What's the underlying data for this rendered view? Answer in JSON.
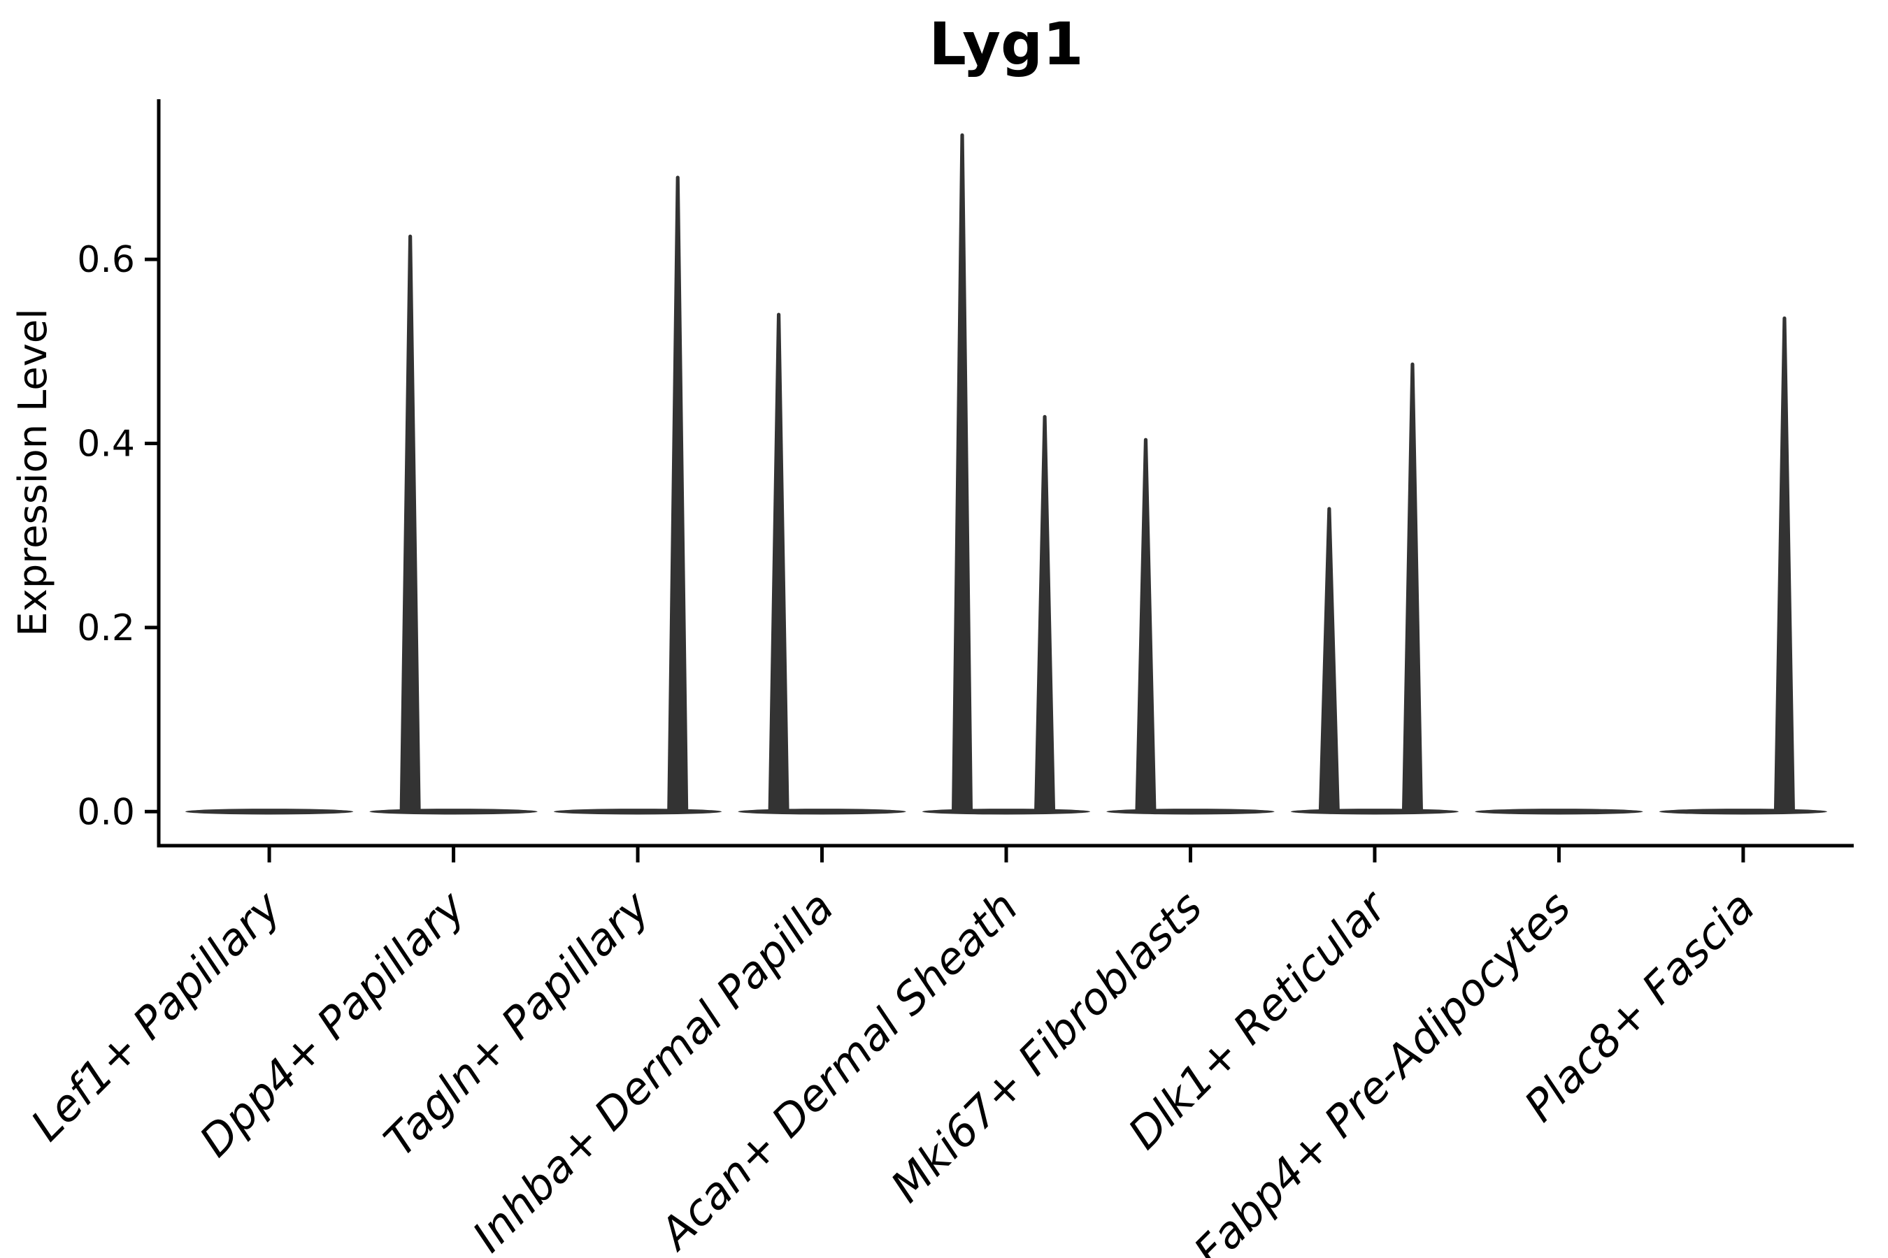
{
  "figure": {
    "background": "#ffffff",
    "title": "Lyg1",
    "ylabel": "Expression Level",
    "xlabel": ""
  },
  "chart_data": {
    "type": "violin",
    "title": "Lyg1",
    "xlabel": "",
    "ylabel": "Expression Level",
    "categories": [
      "Lef1+ Papillary",
      "Dpp4+ Papillary",
      "Tagln+ Papillary",
      "Inhba+ Dermal Papilla",
      "Acan+ Dermal Sheath",
      "Mki67+ Fibroblasts",
      "Dlk1+ Reticular",
      "Fabp4+ Pre-Adipocytes",
      "Plac8+ Fascia"
    ],
    "yticks": [
      0.0,
      0.2,
      0.4,
      0.6
    ],
    "ytick_labels": [
      "0.0",
      "0.2",
      "0.4",
      "0.6"
    ],
    "ylim": [
      -0.037,
      0.774
    ],
    "grid": false,
    "legend": null,
    "violin_fill": "#333333",
    "axis_color": "#000000",
    "violin_width_fraction": 0.9,
    "violins": [
      {
        "category": "Lef1+ Papillary",
        "baseline_value": 0,
        "spikes": []
      },
      {
        "category": "Dpp4+ Papillary",
        "baseline_value": 0,
        "spikes": [
          {
            "offset": -0.235,
            "value": 0.627
          }
        ]
      },
      {
        "category": "Tagln+ Papillary",
        "baseline_value": 0,
        "spikes": [
          {
            "offset": 0.217,
            "value": 0.691
          }
        ]
      },
      {
        "category": "Inhba+ Dermal Papilla",
        "baseline_value": 0,
        "spikes": [
          {
            "offset": -0.235,
            "value": 0.542
          }
        ]
      },
      {
        "category": "Acan+ Dermal Sheath",
        "baseline_value": 0,
        "spikes": [
          {
            "offset": -0.239,
            "value": 0.737
          },
          {
            "offset": 0.209,
            "value": 0.431
          }
        ]
      },
      {
        "category": "Mki67+ Fibroblasts",
        "baseline_value": 0,
        "spikes": [
          {
            "offset": -0.243,
            "value": 0.406
          }
        ]
      },
      {
        "category": "Dlk1+ Reticular",
        "baseline_value": 0,
        "spikes": [
          {
            "offset": -0.247,
            "value": 0.331
          },
          {
            "offset": 0.205,
            "value": 0.488
          }
        ]
      },
      {
        "category": "Fabp4+ Pre-Adipocytes",
        "baseline_value": 0,
        "spikes": []
      },
      {
        "category": "Plac8+ Fascia",
        "baseline_value": 0,
        "spikes": [
          {
            "offset": 0.224,
            "value": 0.538
          }
        ]
      }
    ]
  }
}
